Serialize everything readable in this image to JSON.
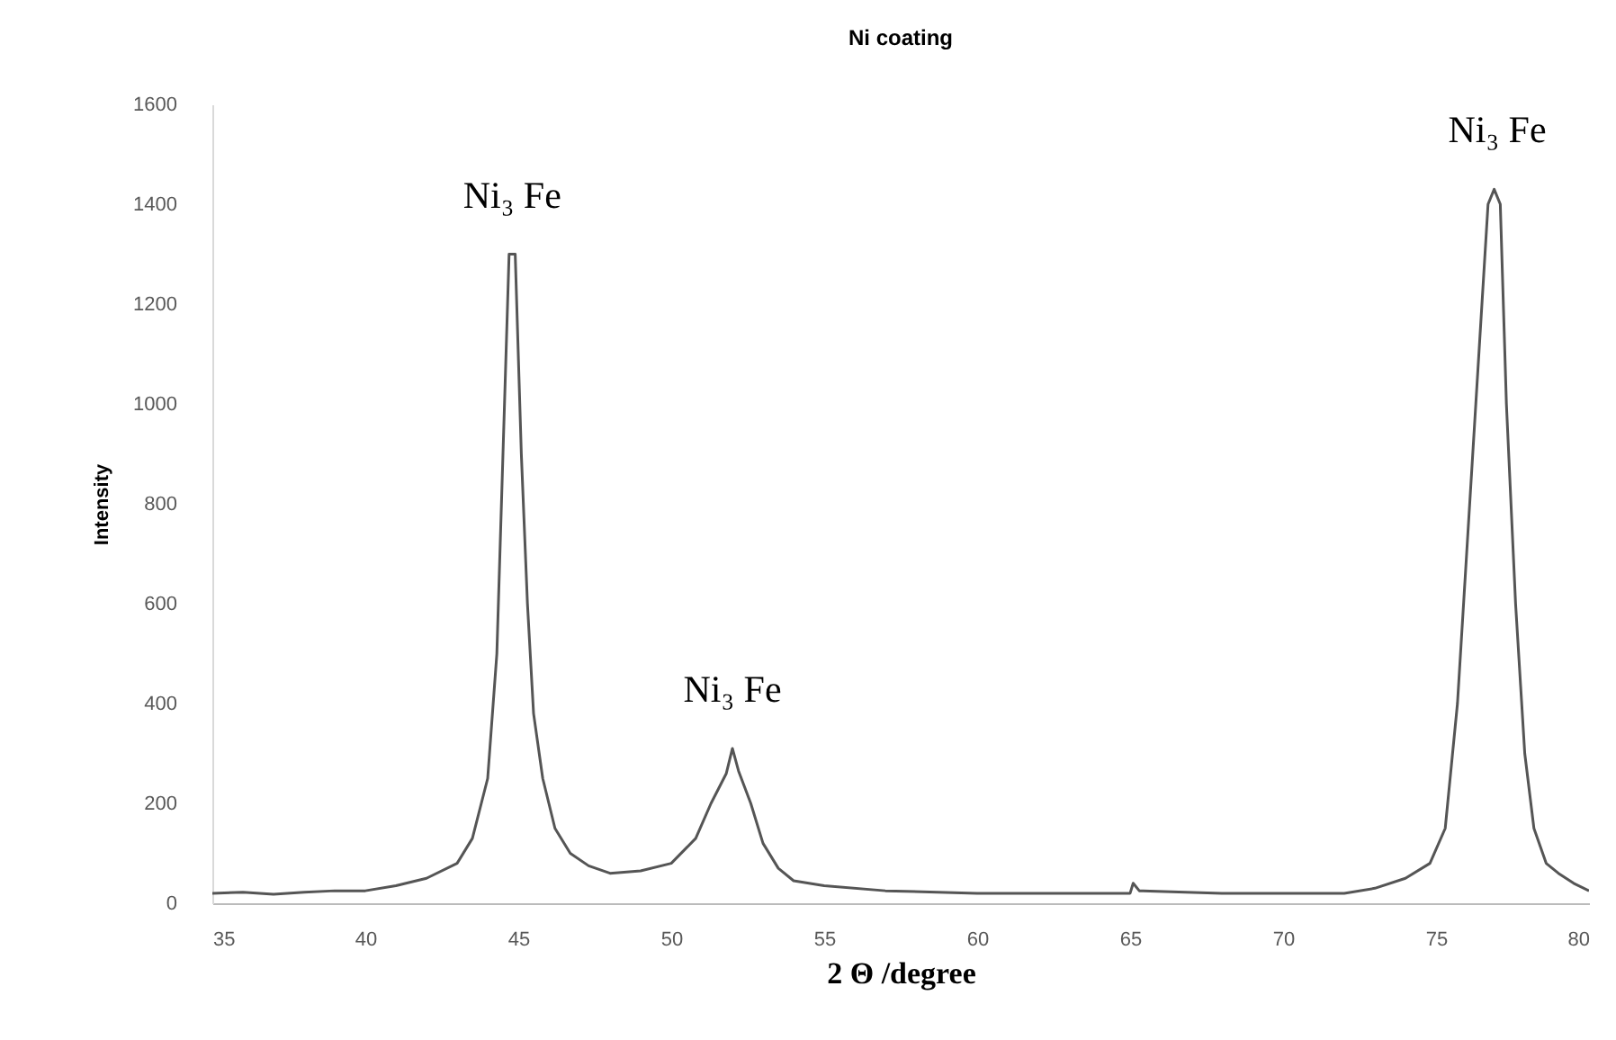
{
  "chart_data": {
    "type": "line",
    "title": "Ni coating",
    "xlabel": "2 Θ /degree",
    "ylabel": "Intensity",
    "x": [
      35,
      36,
      37,
      38,
      39,
      40,
      41,
      42,
      43,
      43.5,
      44,
      44.3,
      44.5,
      44.7,
      44.9,
      45.1,
      45.3,
      45.5,
      45.8,
      46.2,
      46.7,
      47.3,
      48,
      49,
      50,
      50.8,
      51.3,
      51.8,
      52,
      52.2,
      52.6,
      53,
      53.5,
      54,
      55,
      57,
      60,
      63,
      65,
      65.1,
      65.3,
      68,
      72,
      73,
      74,
      74.8,
      75.3,
      75.7,
      76,
      76.3,
      76.7,
      76.9,
      77.1,
      77.3,
      77.6,
      77.9,
      78.2,
      78.6,
      79,
      79.5,
      80
    ],
    "series": [
      {
        "color": "#555555",
        "values": [
          20,
          22,
          18,
          22,
          25,
          25,
          35,
          50,
          80,
          130,
          250,
          500,
          900,
          1300,
          1300,
          900,
          600,
          380,
          250,
          150,
          100,
          75,
          60,
          65,
          80,
          130,
          200,
          260,
          310,
          265,
          200,
          120,
          70,
          45,
          35,
          25,
          20,
          20,
          20,
          40,
          25,
          20,
          20,
          30,
          50,
          80,
          150,
          400,
          700,
          1000,
          1400,
          1430,
          1400,
          1000,
          600,
          300,
          150,
          80,
          60,
          40,
          25
        ]
      }
    ],
    "xlim": [
      35,
      80
    ],
    "xticks": [
      35,
      40,
      45,
      50,
      55,
      60,
      65,
      70,
      75,
      80
    ],
    "ylim": [
      0,
      1600
    ],
    "yticks": [
      0,
      200,
      400,
      600,
      800,
      1000,
      1200,
      1400,
      1600
    ],
    "grid": false,
    "marker": "none",
    "line_style": "solid",
    "annotations": [
      {
        "text": "Ni₃ Fe",
        "x": 44.8,
        "y": 1300
      },
      {
        "text": "Ni₃ Fe",
        "x": 52,
        "y": 310
      },
      {
        "text": "Ni₃ Fe",
        "x": 77,
        "y": 1430
      }
    ]
  }
}
